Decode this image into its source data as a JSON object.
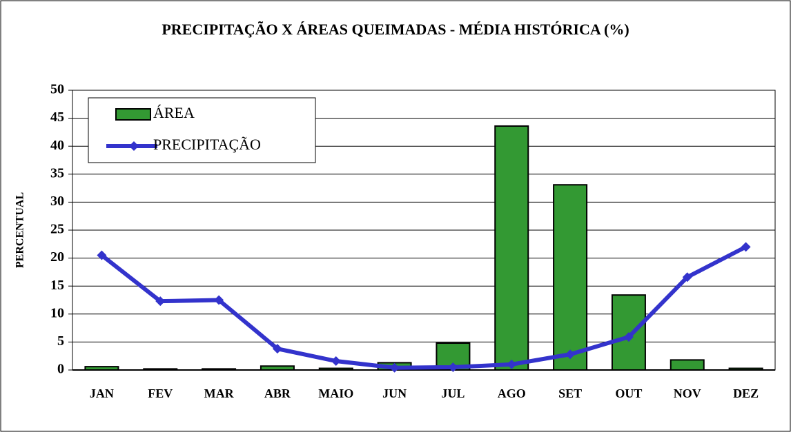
{
  "chart_data": {
    "type": "combo",
    "title": "PRECIPITAÇÃO X ÁREAS QUEIMADAS - MÉDIA HISTÓRICA (%)",
    "y_label": "PERCENTUAL",
    "categories": [
      "JAN",
      "FEV",
      "MAR",
      "ABR",
      "MAIO",
      "JUN",
      "JUL",
      "AGO",
      "SET",
      "OUT",
      "NOV",
      "DEZ"
    ],
    "series": [
      {
        "name": "ÁREA",
        "type": "bar",
        "color": "#339933",
        "values": [
          0.6,
          0.2,
          0.2,
          0.7,
          0.3,
          1.3,
          4.8,
          43.6,
          33.1,
          13.4,
          1.8,
          0.3
        ]
      },
      {
        "name": "PRECIPITAÇÃO",
        "type": "line",
        "color": "#3333cc",
        "values": [
          20.5,
          12.3,
          12.5,
          3.8,
          1.6,
          0.4,
          0.5,
          1.0,
          2.8,
          5.9,
          16.6,
          22.0
        ]
      }
    ],
    "ylim": [
      0,
      50
    ],
    "yticks": [
      0,
      5,
      10,
      15,
      20,
      25,
      30,
      35,
      40,
      45,
      50
    ],
    "grid": true,
    "legend": "top-left"
  }
}
